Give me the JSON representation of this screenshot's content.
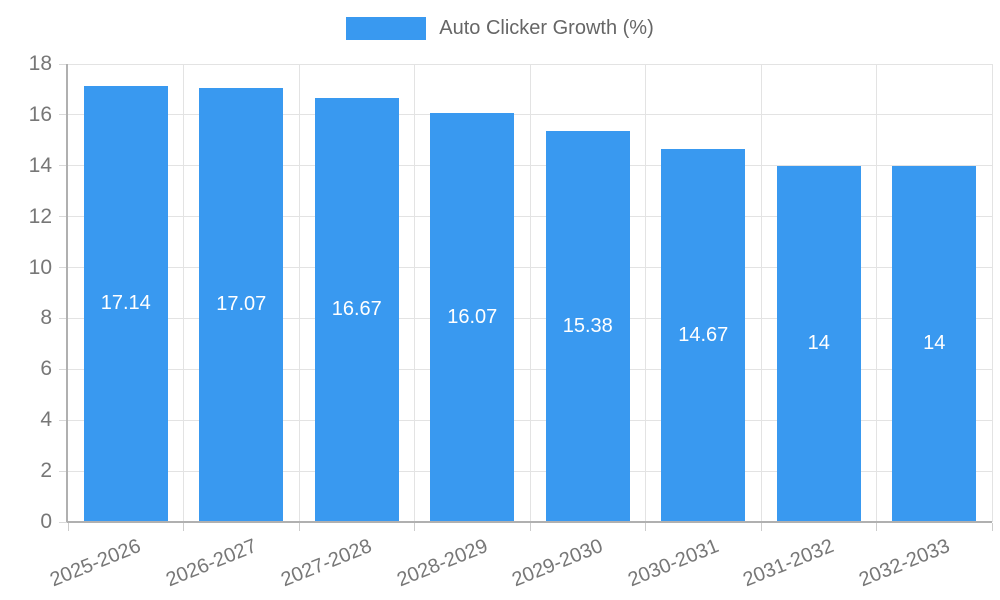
{
  "chart_data": {
    "type": "bar",
    "title": "Auto Clicker Growth (%)",
    "legend": {
      "label": "Auto Clicker Growth (%)",
      "position": "top"
    },
    "categories": [
      "2025-2026",
      "2026-2027",
      "2027-2028",
      "2028-2029",
      "2029-2030",
      "2030-2031",
      "2031-2032",
      "2032-2033"
    ],
    "series": [
      {
        "name": "Auto Clicker Growth (%)",
        "values": [
          17.14,
          17.07,
          16.67,
          16.07,
          15.38,
          14.67,
          14,
          14
        ]
      }
    ],
    "value_labels": [
      "17.14",
      "17.07",
      "16.67",
      "16.07",
      "15.38",
      "14.67",
      "14",
      "14"
    ],
    "xlabel": "",
    "ylabel": "",
    "ylim": [
      0,
      18
    ],
    "yticks": [
      0,
      2,
      4,
      6,
      8,
      10,
      12,
      14,
      16,
      18
    ],
    "grid": true,
    "colors": {
      "bar": "#3999f0",
      "grid": "#e3e3e3",
      "axis": "#b0b0b0",
      "tick_label": "#777777",
      "legend_text": "#666666",
      "value_label": "#ffffff",
      "background": "#ffffff"
    }
  }
}
